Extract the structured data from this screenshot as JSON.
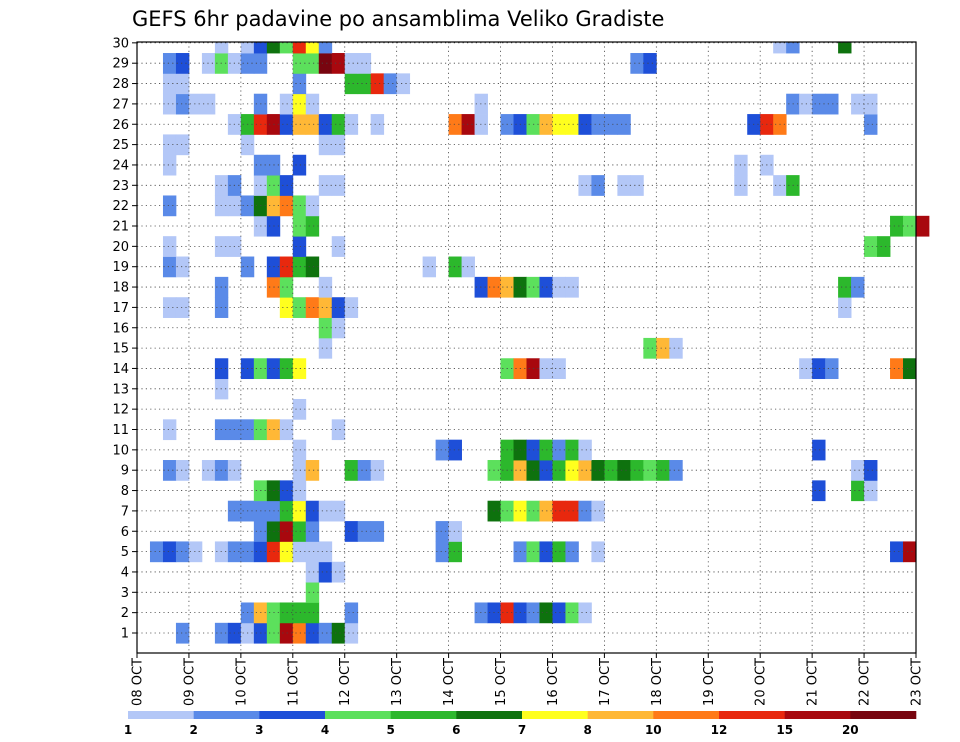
{
  "chart_data": {
    "type": "heatmap",
    "title": "GEFS 6hr padavine po ansamblima Veliko Gradiste",
    "xlabel": "",
    "ylabel": "",
    "x_ticks": [
      "08 OCT",
      "09 OCT",
      "10 OCT",
      "11 OCT",
      "12 OCT",
      "13 OCT",
      "14 OCT",
      "15 OCT",
      "16 OCT",
      "17 OCT",
      "18 OCT",
      "19 OCT",
      "20 OCT",
      "21 OCT",
      "22 OCT",
      "23 OCT"
    ],
    "y_ticks": [
      "1",
      "2",
      "3",
      "4",
      "5",
      "6",
      "7",
      "8",
      "9",
      "10",
      "11",
      "12",
      "13",
      "14",
      "15",
      "16",
      "17",
      "18",
      "19",
      "20",
      "21",
      "22",
      "23",
      "24",
      "25",
      "26",
      "27",
      "28",
      "29",
      "30"
    ],
    "grid": true,
    "steps_per_day": 4,
    "members": 30,
    "colorbar": {
      "labels": [
        "1",
        "2",
        "3",
        "4",
        "5",
        "6",
        "7",
        "8",
        "10",
        "12",
        "15",
        "20"
      ],
      "colors": [
        "#b3c7f7",
        "#5a8ae8",
        "#1e4fd8",
        "#5ce05c",
        "#2cb82c",
        "#0e720e",
        "#ffff1e",
        "#ffb836",
        "#ff7a18",
        "#e8280e",
        "#a8080e",
        "#78050f"
      ]
    },
    "cells": [
      [
        1,
        3,
        2
      ],
      [
        1,
        6,
        2
      ],
      [
        1,
        7,
        3
      ],
      [
        1,
        8,
        1
      ],
      [
        1,
        9,
        3
      ],
      [
        1,
        10,
        4
      ],
      [
        1,
        11,
        11
      ],
      [
        1,
        12,
        9
      ],
      [
        1,
        13,
        3
      ],
      [
        1,
        14,
        2
      ],
      [
        1,
        15,
        6
      ],
      [
        1,
        16,
        1
      ],
      [
        2,
        8,
        2
      ],
      [
        2,
        9,
        8
      ],
      [
        2,
        10,
        4
      ],
      [
        2,
        11,
        5
      ],
      [
        2,
        12,
        5
      ],
      [
        2,
        13,
        5
      ],
      [
        2,
        16,
        2
      ],
      [
        2,
        26,
        2
      ],
      [
        2,
        27,
        3
      ],
      [
        2,
        28,
        10
      ],
      [
        2,
        29,
        3
      ],
      [
        2,
        30,
        2
      ],
      [
        2,
        31,
        6
      ],
      [
        2,
        32,
        3
      ],
      [
        2,
        33,
        4
      ],
      [
        2,
        34,
        1
      ],
      [
        3,
        13,
        4
      ],
      [
        4,
        13,
        1
      ],
      [
        4,
        14,
        3
      ],
      [
        4,
        15,
        1
      ],
      [
        5,
        1,
        2
      ],
      [
        5,
        2,
        3
      ],
      [
        5,
        3,
        2
      ],
      [
        5,
        4,
        1
      ],
      [
        5,
        6,
        1
      ],
      [
        5,
        7,
        2
      ],
      [
        5,
        8,
        2
      ],
      [
        5,
        9,
        3
      ],
      [
        5,
        10,
        10
      ],
      [
        5,
        11,
        7
      ],
      [
        5,
        12,
        1
      ],
      [
        5,
        13,
        1
      ],
      [
        5,
        14,
        1
      ],
      [
        5,
        23,
        2
      ],
      [
        5,
        24,
        5
      ],
      [
        5,
        29,
        2
      ],
      [
        5,
        30,
        4
      ],
      [
        5,
        31,
        3
      ],
      [
        5,
        32,
        5
      ],
      [
        5,
        33,
        2
      ],
      [
        5,
        35,
        1
      ],
      [
        5,
        58,
        3
      ],
      [
        5,
        59,
        11
      ],
      [
        6,
        9,
        2
      ],
      [
        6,
        10,
        6
      ],
      [
        6,
        11,
        11
      ],
      [
        6,
        12,
        5
      ],
      [
        6,
        13,
        2
      ],
      [
        6,
        16,
        3
      ],
      [
        6,
        17,
        2
      ],
      [
        6,
        18,
        2
      ],
      [
        6,
        23,
        2
      ],
      [
        6,
        24,
        1
      ],
      [
        7,
        7,
        2
      ],
      [
        7,
        8,
        2
      ],
      [
        7,
        9,
        2
      ],
      [
        7,
        10,
        2
      ],
      [
        7,
        11,
        5
      ],
      [
        7,
        12,
        7
      ],
      [
        7,
        13,
        3
      ],
      [
        7,
        14,
        1
      ],
      [
        7,
        15,
        1
      ],
      [
        7,
        27,
        6
      ],
      [
        7,
        28,
        4
      ],
      [
        7,
        29,
        7
      ],
      [
        7,
        30,
        4
      ],
      [
        7,
        31,
        8
      ],
      [
        7,
        32,
        10
      ],
      [
        7,
        33,
        10
      ],
      [
        7,
        34,
        2
      ],
      [
        7,
        35,
        1
      ],
      [
        8,
        9,
        4
      ],
      [
        8,
        10,
        6
      ],
      [
        8,
        11,
        3
      ],
      [
        8,
        12,
        1
      ],
      [
        8,
        52,
        3
      ],
      [
        8,
        55,
        5
      ],
      [
        8,
        56,
        1
      ],
      [
        9,
        2,
        2
      ],
      [
        9,
        3,
        1
      ],
      [
        9,
        5,
        1
      ],
      [
        9,
        6,
        2
      ],
      [
        9,
        7,
        1
      ],
      [
        9,
        12,
        1
      ],
      [
        9,
        13,
        8
      ],
      [
        9,
        16,
        5
      ],
      [
        9,
        17,
        2
      ],
      [
        9,
        18,
        1
      ],
      [
        9,
        27,
        4
      ],
      [
        9,
        28,
        5
      ],
      [
        9,
        29,
        8
      ],
      [
        9,
        30,
        6
      ],
      [
        9,
        31,
        3
      ],
      [
        9,
        32,
        5
      ],
      [
        9,
        33,
        7
      ],
      [
        9,
        34,
        8
      ],
      [
        9,
        35,
        6
      ],
      [
        9,
        36,
        5
      ],
      [
        9,
        37,
        6
      ],
      [
        9,
        38,
        5
      ],
      [
        9,
        39,
        4
      ],
      [
        9,
        40,
        5
      ],
      [
        9,
        41,
        2
      ],
      [
        9,
        55,
        1
      ],
      [
        9,
        56,
        3
      ],
      [
        10,
        12,
        1
      ],
      [
        10,
        23,
        2
      ],
      [
        10,
        24,
        3
      ],
      [
        10,
        28,
        5
      ],
      [
        10,
        29,
        6
      ],
      [
        10,
        30,
        3
      ],
      [
        10,
        31,
        5
      ],
      [
        10,
        32,
        2
      ],
      [
        10,
        33,
        5
      ],
      [
        10,
        34,
        1
      ],
      [
        10,
        52,
        3
      ],
      [
        11,
        2,
        1
      ],
      [
        11,
        6,
        2
      ],
      [
        11,
        7,
        2
      ],
      [
        11,
        8,
        2
      ],
      [
        11,
        9,
        4
      ],
      [
        11,
        10,
        8
      ],
      [
        11,
        11,
        1
      ],
      [
        11,
        15,
        1
      ],
      [
        12,
        12,
        1
      ],
      [
        13,
        6,
        1
      ],
      [
        14,
        6,
        3
      ],
      [
        14,
        8,
        3
      ],
      [
        14,
        9,
        4
      ],
      [
        14,
        10,
        3
      ],
      [
        14,
        11,
        5
      ],
      [
        14,
        12,
        7
      ],
      [
        14,
        28,
        4
      ],
      [
        14,
        29,
        9
      ],
      [
        14,
        30,
        11
      ],
      [
        14,
        31,
        1
      ],
      [
        14,
        32,
        1
      ],
      [
        14,
        51,
        1
      ],
      [
        14,
        52,
        3
      ],
      [
        14,
        53,
        2
      ],
      [
        14,
        58,
        9
      ],
      [
        14,
        59,
        6
      ],
      [
        15,
        14,
        1
      ],
      [
        15,
        39,
        4
      ],
      [
        15,
        40,
        8
      ],
      [
        15,
        41,
        1
      ],
      [
        16,
        14,
        4
      ],
      [
        16,
        15,
        1
      ],
      [
        17,
        2,
        1
      ],
      [
        17,
        3,
        1
      ],
      [
        17,
        6,
        2
      ],
      [
        17,
        11,
        7
      ],
      [
        17,
        12,
        4
      ],
      [
        17,
        13,
        9
      ],
      [
        17,
        14,
        8
      ],
      [
        17,
        15,
        3
      ],
      [
        17,
        16,
        1
      ],
      [
        17,
        54,
        1
      ],
      [
        18,
        6,
        2
      ],
      [
        18,
        10,
        9
      ],
      [
        18,
        11,
        4
      ],
      [
        18,
        14,
        1
      ],
      [
        18,
        26,
        3
      ],
      [
        18,
        27,
        9
      ],
      [
        18,
        28,
        8
      ],
      [
        18,
        29,
        6
      ],
      [
        18,
        30,
        4
      ],
      [
        18,
        31,
        3
      ],
      [
        18,
        32,
        1
      ],
      [
        18,
        33,
        1
      ],
      [
        18,
        54,
        5
      ],
      [
        18,
        55,
        2
      ],
      [
        19,
        2,
        2
      ],
      [
        19,
        3,
        1
      ],
      [
        19,
        8,
        2
      ],
      [
        19,
        10,
        3
      ],
      [
        19,
        11,
        10
      ],
      [
        19,
        12,
        5
      ],
      [
        19,
        13,
        6
      ],
      [
        19,
        22,
        1
      ],
      [
        19,
        24,
        5
      ],
      [
        19,
        25,
        1
      ],
      [
        20,
        2,
        1
      ],
      [
        20,
        6,
        1
      ],
      [
        20,
        7,
        1
      ],
      [
        20,
        12,
        3
      ],
      [
        20,
        15,
        1
      ],
      [
        20,
        56,
        4
      ],
      [
        20,
        57,
        5
      ],
      [
        21,
        9,
        1
      ],
      [
        21,
        10,
        3
      ],
      [
        21,
        12,
        4
      ],
      [
        21,
        13,
        5
      ],
      [
        21,
        58,
        5
      ],
      [
        21,
        59,
        4
      ],
      [
        21,
        60,
        11
      ],
      [
        22,
        2,
        2
      ],
      [
        22,
        6,
        1
      ],
      [
        22,
        7,
        1
      ],
      [
        22,
        8,
        2
      ],
      [
        22,
        9,
        6
      ],
      [
        22,
        10,
        8
      ],
      [
        22,
        11,
        9
      ],
      [
        22,
        12,
        4
      ],
      [
        22,
        13,
        1
      ],
      [
        23,
        6,
        1
      ],
      [
        23,
        7,
        2
      ],
      [
        23,
        9,
        1
      ],
      [
        23,
        10,
        4
      ],
      [
        23,
        11,
        3
      ],
      [
        23,
        14,
        1
      ],
      [
        23,
        15,
        1
      ],
      [
        23,
        34,
        1
      ],
      [
        23,
        35,
        2
      ],
      [
        23,
        37,
        1
      ],
      [
        23,
        38,
        1
      ],
      [
        23,
        46,
        1
      ],
      [
        23,
        49,
        1
      ],
      [
        23,
        50,
        5
      ],
      [
        24,
        2,
        1
      ],
      [
        24,
        9,
        2
      ],
      [
        24,
        10,
        2
      ],
      [
        24,
        12,
        3
      ],
      [
        24,
        46,
        1
      ],
      [
        24,
        48,
        1
      ],
      [
        25,
        2,
        1
      ],
      [
        25,
        3,
        1
      ],
      [
        25,
        8,
        1
      ],
      [
        25,
        14,
        1
      ],
      [
        25,
        15,
        1
      ],
      [
        26,
        7,
        1
      ],
      [
        26,
        8,
        5
      ],
      [
        26,
        9,
        10
      ],
      [
        26,
        10,
        11
      ],
      [
        26,
        11,
        3
      ],
      [
        26,
        12,
        8
      ],
      [
        26,
        13,
        8
      ],
      [
        26,
        14,
        3
      ],
      [
        26,
        15,
        5
      ],
      [
        26,
        16,
        1
      ],
      [
        26,
        18,
        1
      ],
      [
        26,
        24,
        9
      ],
      [
        26,
        25,
        11
      ],
      [
        26,
        26,
        1
      ],
      [
        26,
        28,
        2
      ],
      [
        26,
        29,
        3
      ],
      [
        26,
        30,
        4
      ],
      [
        26,
        31,
        8
      ],
      [
        26,
        32,
        7
      ],
      [
        26,
        33,
        7
      ],
      [
        26,
        34,
        3
      ],
      [
        26,
        35,
        2
      ],
      [
        26,
        36,
        2
      ],
      [
        26,
        37,
        2
      ],
      [
        26,
        47,
        3
      ],
      [
        26,
        48,
        10
      ],
      [
        26,
        49,
        9
      ],
      [
        26,
        56,
        2
      ],
      [
        27,
        2,
        1
      ],
      [
        27,
        3,
        2
      ],
      [
        27,
        4,
        1
      ],
      [
        27,
        5,
        1
      ],
      [
        27,
        9,
        2
      ],
      [
        27,
        11,
        1
      ],
      [
        27,
        12,
        7
      ],
      [
        27,
        13,
        1
      ],
      [
        27,
        26,
        1
      ],
      [
        27,
        50,
        2
      ],
      [
        27,
        51,
        1
      ],
      [
        27,
        52,
        2
      ],
      [
        27,
        53,
        2
      ],
      [
        27,
        55,
        1
      ],
      [
        27,
        56,
        1
      ],
      [
        28,
        2,
        1
      ],
      [
        28,
        3,
        1
      ],
      [
        28,
        12,
        2
      ],
      [
        28,
        16,
        5
      ],
      [
        28,
        17,
        5
      ],
      [
        28,
        18,
        10
      ],
      [
        28,
        19,
        2
      ],
      [
        28,
        20,
        1
      ],
      [
        29,
        2,
        2
      ],
      [
        29,
        3,
        3
      ],
      [
        29,
        5,
        1
      ],
      [
        29,
        6,
        4
      ],
      [
        29,
        7,
        1
      ],
      [
        29,
        8,
        2
      ],
      [
        29,
        9,
        2
      ],
      [
        29,
        12,
        4
      ],
      [
        29,
        13,
        4
      ],
      [
        29,
        14,
        12
      ],
      [
        29,
        15,
        11
      ],
      [
        29,
        16,
        1
      ],
      [
        29,
        17,
        1
      ],
      [
        29,
        38,
        2
      ],
      [
        29,
        39,
        3
      ],
      [
        30,
        6,
        1
      ],
      [
        30,
        8,
        1
      ],
      [
        30,
        9,
        3
      ],
      [
        30,
        10,
        6
      ],
      [
        30,
        11,
        4
      ],
      [
        30,
        12,
        10
      ],
      [
        30,
        13,
        7
      ],
      [
        30,
        14,
        2
      ],
      [
        30,
        49,
        1
      ],
      [
        30,
        50,
        2
      ],
      [
        30,
        54,
        6
      ]
    ]
  }
}
